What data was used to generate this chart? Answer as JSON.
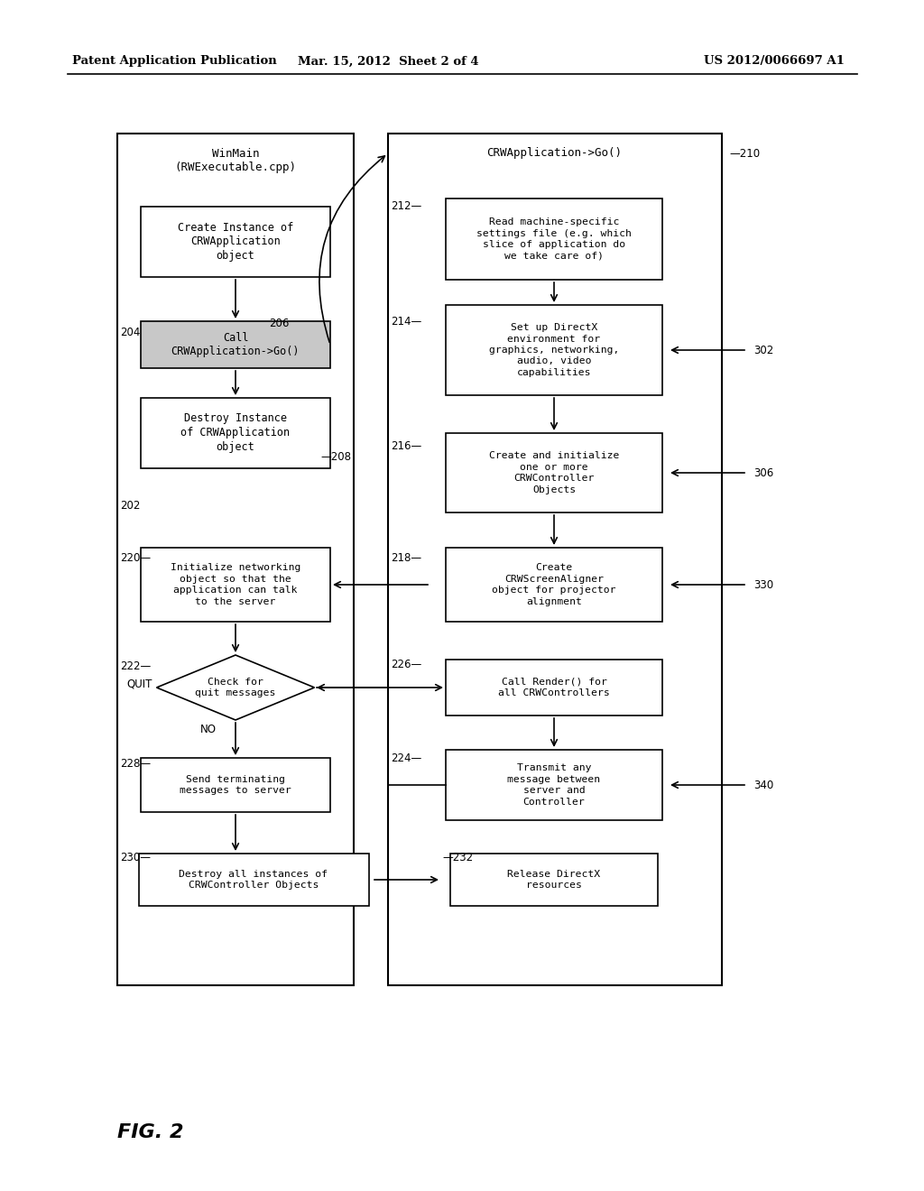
{
  "bg_color": "#ffffff",
  "header_left": "Patent Application Publication",
  "header_center": "Mar. 15, 2012  Sheet 2 of 4",
  "header_right": "US 2012/0066697 A1",
  "fig_label": "FIG. 2"
}
